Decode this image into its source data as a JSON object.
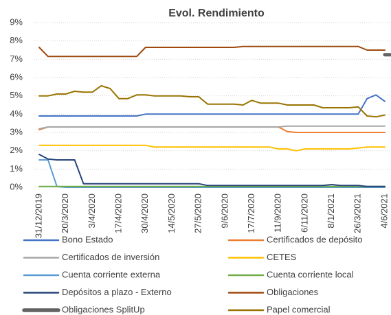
{
  "chart_data": {
    "type": "line",
    "title": "Evol. Rendimiento",
    "categories": [
      "31/12/2019",
      null,
      null,
      "20/3/2020",
      null,
      null,
      "3/4/2020",
      null,
      null,
      "17/4/2020",
      null,
      null,
      "30/4/2020",
      null,
      null,
      "14/5/2020",
      null,
      null,
      "27/5/2020",
      null,
      null,
      "9/6/2020",
      null,
      null,
      "17/7/2020",
      null,
      null,
      "11/9/2020",
      null,
      null,
      "6/11/2020",
      null,
      null,
      "8/1/2021",
      null,
      null,
      "26/3/2021",
      null,
      null,
      "4/6/2021"
    ],
    "ylim": [
      0,
      9
    ],
    "yticks": [
      {
        "value": 0,
        "label": "0%"
      },
      {
        "value": 1,
        "label": "1%"
      },
      {
        "value": 2,
        "label": "2%"
      },
      {
        "value": 3,
        "label": "3%"
      },
      {
        "value": 4,
        "label": "4%"
      },
      {
        "value": 5,
        "label": "5%"
      },
      {
        "value": 6,
        "label": "6%"
      },
      {
        "value": 7,
        "label": "7%"
      },
      {
        "value": 8,
        "label": "8%"
      },
      {
        "value": 9,
        "label": "9%"
      }
    ],
    "grid": true,
    "legend": "bottom",
    "series": [
      {
        "name": "Bono Estado",
        "color": "#4472c4",
        "width": 2,
        "values": [
          3.9,
          3.9,
          3.9,
          3.9,
          3.9,
          3.9,
          3.9,
          3.9,
          3.9,
          3.9,
          3.9,
          3.9,
          4.0,
          4.0,
          4.0,
          4.0,
          4.0,
          4.0,
          4.0,
          4.0,
          4.0,
          4.0,
          4.0,
          4.0,
          4.0,
          4.0,
          4.0,
          4.0,
          4.0,
          4.0,
          4.0,
          4.0,
          4.0,
          4.0,
          4.0,
          4.0,
          4.0,
          4.85,
          5.05,
          4.7
        ]
      },
      {
        "name": "Certificados de depósito",
        "color": "#ed7d31",
        "width": 2,
        "values": [
          3.15,
          3.3,
          3.3,
          3.3,
          3.3,
          3.3,
          3.3,
          3.3,
          3.3,
          3.3,
          3.3,
          3.3,
          3.3,
          3.3,
          3.3,
          3.3,
          3.3,
          3.3,
          3.3,
          3.3,
          3.3,
          3.3,
          3.3,
          3.3,
          3.3,
          3.3,
          3.3,
          3.3,
          3.05,
          3.0,
          3.0,
          3.0,
          3.0,
          3.0,
          3.0,
          3.0,
          3.0,
          3.0,
          3.0,
          3.0
        ]
      },
      {
        "name": "Certificados de inversión",
        "color": "#a5a5a5",
        "width": 2,
        "values": [
          3.2,
          3.3,
          3.3,
          3.3,
          3.3,
          3.3,
          3.3,
          3.3,
          3.3,
          3.3,
          3.3,
          3.3,
          3.3,
          3.3,
          3.3,
          3.3,
          3.3,
          3.3,
          3.3,
          3.3,
          3.3,
          3.3,
          3.3,
          3.3,
          3.3,
          3.3,
          3.3,
          3.3,
          3.35,
          3.35,
          3.35,
          3.35,
          3.35,
          3.35,
          3.35,
          3.35,
          3.35,
          3.35,
          3.35,
          3.35
        ]
      },
      {
        "name": "CETES",
        "color": "#ffc000",
        "width": 2,
        "values": [
          2.3,
          2.3,
          2.3,
          2.3,
          2.3,
          2.3,
          2.3,
          2.3,
          2.3,
          2.3,
          2.3,
          2.3,
          2.3,
          2.2,
          2.2,
          2.2,
          2.2,
          2.2,
          2.2,
          2.2,
          2.2,
          2.2,
          2.2,
          2.2,
          2.2,
          2.2,
          2.2,
          2.1,
          2.1,
          2.0,
          2.1,
          2.1,
          2.1,
          2.1,
          2.1,
          2.1,
          2.15,
          2.2,
          2.2,
          2.2
        ]
      },
      {
        "name": "Cuenta corriente externa",
        "color": "#5b9bd5",
        "width": 2,
        "values": [
          1.5,
          1.5,
          0.05,
          0,
          0,
          0,
          0,
          0,
          0,
          0,
          0,
          0,
          0,
          0,
          0,
          0,
          0,
          0,
          0,
          0,
          0,
          0,
          0,
          0,
          0,
          0,
          0,
          0,
          0,
          0,
          0,
          0,
          0,
          0,
          0,
          0,
          0,
          0,
          0,
          0
        ]
      },
      {
        "name": "Cuenta corriente local",
        "color": "#70ad47",
        "width": 2,
        "values": [
          0.05,
          0.05,
          0.05,
          0.05,
          0.05,
          0.05,
          0.05,
          0.05,
          0.05,
          0.05,
          0.05,
          0.05,
          0.05,
          0.05,
          0.05,
          0.05,
          0.05,
          0.05,
          0.05,
          0.05,
          0.05,
          0.05,
          0.05,
          0.05,
          0.05,
          0.05,
          0.05,
          0.05,
          0.05,
          0.05,
          0.05,
          0.05,
          0.05,
          0.05,
          0.05,
          0.05,
          0.05,
          0.05,
          0.05,
          0.05
        ]
      },
      {
        "name": "Depósitos a plazo - Externo",
        "color": "#264478",
        "width": 2,
        "values": [
          1.8,
          1.55,
          1.5,
          1.5,
          1.5,
          0.2,
          0.2,
          0.2,
          0.2,
          0.2,
          0.2,
          0.2,
          0.2,
          0.2,
          0.2,
          0.2,
          0.2,
          0.2,
          0.2,
          0.1,
          0.1,
          0.1,
          0.1,
          0.1,
          0.1,
          0.1,
          0.1,
          0.1,
          0.1,
          0.1,
          0.1,
          0.1,
          0.1,
          0.15,
          0.1,
          0.1,
          0.1,
          0.05,
          0.05,
          0.05
        ]
      },
      {
        "name": "Obligaciones",
        "color": "#9e480e",
        "width": 2,
        "values": [
          7.65,
          7.15,
          7.15,
          7.15,
          7.15,
          7.15,
          7.15,
          7.15,
          7.15,
          7.15,
          7.15,
          7.15,
          7.65,
          7.65,
          7.65,
          7.65,
          7.65,
          7.65,
          7.65,
          7.65,
          7.65,
          7.65,
          7.65,
          7.7,
          7.7,
          7.7,
          7.7,
          7.7,
          7.7,
          7.7,
          7.7,
          7.7,
          7.7,
          7.7,
          7.7,
          7.7,
          7.7,
          7.5,
          7.5,
          7.5
        ]
      },
      {
        "name": "Obligaciones SplitUp",
        "color": "#636363",
        "width": 5,
        "values": [
          null,
          null,
          null,
          null,
          null,
          null,
          null,
          null,
          null,
          null,
          null,
          null,
          null,
          null,
          null,
          null,
          null,
          null,
          null,
          null,
          null,
          null,
          null,
          null,
          null,
          null,
          null,
          null,
          null,
          null,
          null,
          null,
          null,
          null,
          null,
          null,
          null,
          null,
          null,
          7.25
        ]
      },
      {
        "name": "Papel comercial",
        "color": "#997300",
        "width": 2,
        "values": [
          5.0,
          5.0,
          5.1,
          5.1,
          5.25,
          5.2,
          5.2,
          5.55,
          5.4,
          4.85,
          4.85,
          5.05,
          5.05,
          5.0,
          5.0,
          5.0,
          5.0,
          4.95,
          4.95,
          4.55,
          4.55,
          4.55,
          4.55,
          4.5,
          4.75,
          4.6,
          4.6,
          4.6,
          4.5,
          4.5,
          4.5,
          4.5,
          4.35,
          4.35,
          4.35,
          4.35,
          4.4,
          3.9,
          3.85,
          3.95
        ]
      }
    ]
  }
}
